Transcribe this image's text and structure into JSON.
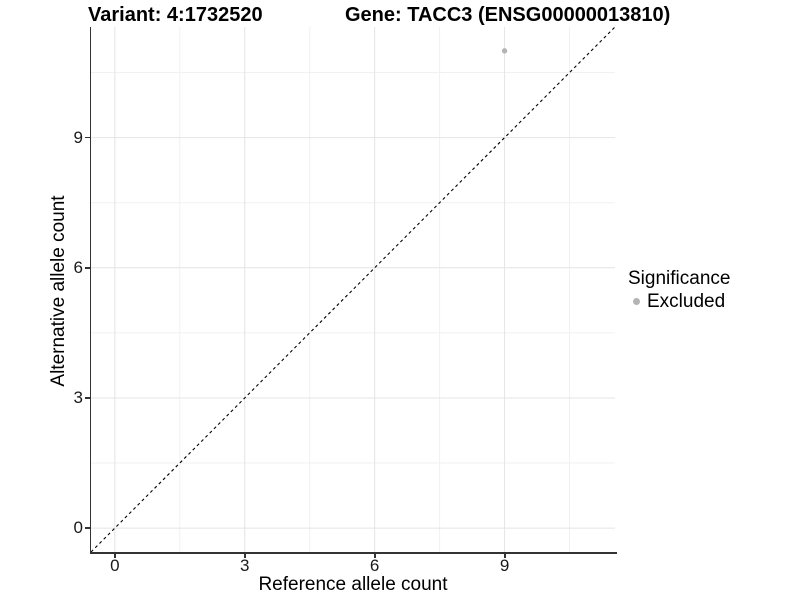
{
  "chart_data": {
    "type": "scatter",
    "title_variant": "Variant: 4:1732520",
    "title_gene": "Gene: TACC3 (ENSG00000013810)",
    "xlabel": "Reference allele count",
    "ylabel": "Alternative allele count",
    "xlim": [
      -0.55,
      11.55
    ],
    "ylim": [
      -0.55,
      11.55
    ],
    "x_ticks": [
      0,
      3,
      6,
      9
    ],
    "y_ticks": [
      0,
      3,
      6,
      9
    ],
    "x_minor_ticks": [
      1.5,
      4.5,
      7.5,
      10.5
    ],
    "y_minor_ticks": [
      1.5,
      4.5,
      7.5,
      10.5
    ],
    "grid": true,
    "series": [
      {
        "name": "Excluded",
        "color": "#b4b4b4",
        "points": [
          {
            "x": 9,
            "y": 11
          }
        ]
      }
    ],
    "reference_line": {
      "type": "identity",
      "from": [
        -0.55,
        -0.55
      ],
      "to": [
        11.55,
        11.55
      ],
      "style": "dashed",
      "color": "#000000"
    },
    "legend": {
      "position": "right",
      "title": "Significance",
      "entries": [
        {
          "label": "Excluded",
          "color": "#b4b4b4",
          "icon": "legend-key-dot"
        }
      ]
    }
  },
  "colors": {
    "background": "#ffffff",
    "grid_major": "#e4e4e4",
    "grid_minor": "#f1f1f1",
    "axis_line": "#333333",
    "tick_text": "#1a1a1a",
    "point": "#b4b4b4",
    "reference_line": "#000000"
  }
}
